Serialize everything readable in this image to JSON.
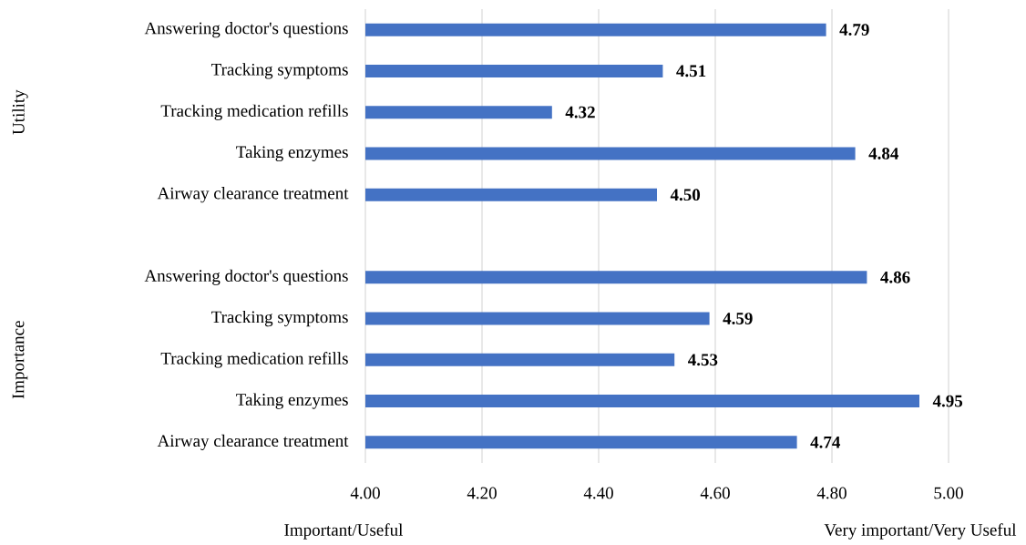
{
  "chart_data": {
    "type": "bar",
    "orientation": "horizontal",
    "categories": [
      "Answering doctor's questions",
      "Tracking symptoms",
      "Tracking medication refills",
      "Taking enzymes",
      "Airway clearance treatment",
      null,
      "Answering doctor's questions",
      "Tracking symptoms",
      "Tracking medication refills",
      "Taking enzymes",
      "Airway clearance treatment"
    ],
    "values": [
      4.79,
      4.51,
      4.32,
      4.84,
      4.5,
      null,
      4.86,
      4.59,
      4.53,
      4.95,
      4.74
    ],
    "value_labels": [
      "4.79",
      "4.51",
      "4.32",
      "4.84",
      "4.50",
      null,
      "4.86",
      "4.59",
      "4.53",
      "4.95",
      "4.74"
    ],
    "color": "#4472c4",
    "xlim": [
      4,
      5
    ],
    "xticks": [
      {
        "value": 4,
        "label": "4.00"
      },
      {
        "value": 4.2,
        "label": "4.20"
      },
      {
        "value": 4.4,
        "label": "4.40"
      },
      {
        "value": 4.6,
        "label": "4.60"
      },
      {
        "value": 4.8,
        "label": "4.80"
      },
      {
        "value": 5,
        "label": "5.00"
      }
    ],
    "grid": "x",
    "annotations": [
      "Utility",
      "Importance",
      "Important/Useful",
      "Very important/Very Useful"
    ]
  }
}
